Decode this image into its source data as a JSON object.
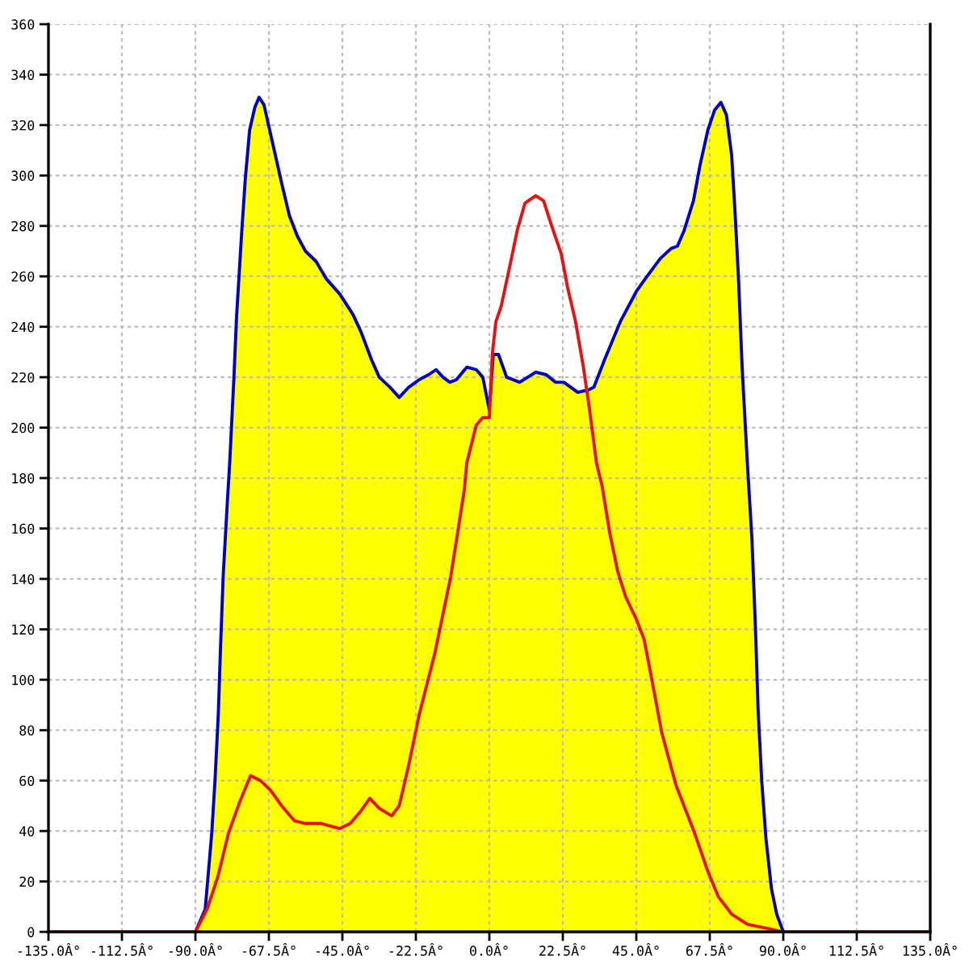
{
  "chart_data": {
    "type": "line",
    "xlim": [
      -135,
      135
    ],
    "xticks": [
      {
        "value": -135,
        "label": "-135.0Â°"
      },
      {
        "value": -112.5,
        "label": "-112.5Â°"
      },
      {
        "value": -90,
        "label": "-90.0Â°"
      },
      {
        "value": -67.5,
        "label": "-67.5Â°"
      },
      {
        "value": -45,
        "label": "-45.0Â°"
      },
      {
        "value": -22.5,
        "label": "-22.5Â°"
      },
      {
        "value": 0,
        "label": "0.0Â°"
      },
      {
        "value": 22.5,
        "label": "22.5Â°"
      },
      {
        "value": 45,
        "label": "45.0Â°"
      },
      {
        "value": 67.5,
        "label": "67.5Â°"
      },
      {
        "value": 90,
        "label": "90.0Â°"
      },
      {
        "value": 112.5,
        "label": "112.5Â°"
      },
      {
        "value": 135,
        "label": "135.0Â°"
      }
    ],
    "ylim": [
      0,
      360
    ],
    "yticks": [
      0,
      20,
      40,
      60,
      80,
      100,
      120,
      140,
      160,
      180,
      200,
      220,
      240,
      260,
      280,
      300,
      320,
      340,
      360
    ],
    "grid": true,
    "series": [
      {
        "type": "area",
        "color": "#ffff00",
        "colors": [
          "#0000cc",
          "#0000cc",
          "#0000cc",
          "#0000cc",
          "#0000cc",
          "#0000cc",
          "#0000cc",
          "#0000cc",
          "#0000cc",
          "#0000cc",
          "#0000cc",
          "#0000cc",
          "#0000cc",
          "#0000cc",
          "#0000cc",
          "#0000cc",
          "#0000cc",
          "#0000cc",
          "#0000cc",
          "#0000cc",
          "#0000cc",
          "#0000cc",
          "#0000cc",
          "#0000cc",
          "#0000cc",
          "#0000cc",
          "#0000cc",
          "#0000cc",
          "#0000cc",
          "#0000cc",
          "#0000cc",
          "#0000cc",
          "#0000cc",
          "#0000cc",
          "#0000cc",
          "#0000cc",
          "#0000cc",
          "#0000cc",
          "#0000cc",
          "#0000cc",
          "#0000cc",
          "#0000cc",
          "#0000cc",
          "#0000cc",
          "#0000cc",
          "#0000cc",
          "#0000cc",
          "#0000cc",
          "#0000cc",
          "#0000cc",
          "#0000cc",
          "#0000cc",
          "#0000cc",
          "#0000cc",
          "#0000cc",
          "#0000cc",
          "#0000cc",
          "#0000cc",
          "#0000cc",
          "#0000cc",
          "#0000cc",
          "#0000cc",
          "#0000cc",
          "#0000cc",
          "#0000cc",
          "#0000cc",
          "#0000cc",
          "#0000cc",
          "#0000cc",
          "#0000cc",
          "#0000cc",
          "#0000cc",
          "#0000cc",
          "#0000cc",
          "#0000cc",
          "#0000cc",
          "#0000cc",
          "#0000cc",
          "#0000cc",
          "#0000cc"
        ],
        "x": [
          -90,
          -87,
          -85,
          -84,
          -83,
          -82.3,
          -81.5,
          -80.2,
          -79.5,
          -78.2,
          -77.4,
          -75.8,
          -74.7,
          -73.4,
          -71.8,
          -70.5,
          -69,
          -66.9,
          -63.6,
          -61.2,
          -58.8,
          -56.3,
          -53.1,
          -49.9,
          -45.8,
          -41.8,
          -39.3,
          -36.1,
          -33.7,
          -30.4,
          -27.6,
          -24.7,
          -21.5,
          -18.6,
          -16.3,
          -14.2,
          -12.1,
          -10.1,
          -6.9,
          -4,
          -2,
          0,
          1.2,
          2.8,
          5.3,
          9.3,
          14.2,
          17.4,
          20.3,
          22.8,
          27.1,
          30.4,
          32,
          35.3,
          40.1,
          45,
          48.3,
          52.3,
          55.6,
          57.6,
          59.6,
          62.5,
          64.5,
          66.9,
          69,
          70.9,
          72.6,
          74.2,
          75.3,
          76.3,
          77.4,
          79,
          80.4,
          81.5,
          82.3,
          83.4,
          84.7,
          86.4,
          88,
          90
        ],
        "values": [
          0,
          9,
          39,
          60,
          86,
          113,
          141,
          171,
          186,
          220,
          244,
          278,
          299,
          318,
          327,
          331,
          328,
          316,
          297,
          284,
          276,
          270,
          266,
          259,
          253,
          245,
          238,
          227,
          220,
          216,
          212,
          216,
          219,
          221,
          223,
          220,
          218,
          219,
          224,
          223,
          220,
          207,
          229,
          229,
          220,
          218,
          222,
          221,
          218,
          218,
          214,
          215,
          216,
          227,
          242,
          254,
          260,
          267,
          271,
          272,
          278,
          290,
          304,
          318,
          326,
          329,
          324,
          308,
          284,
          259,
          224,
          186,
          156,
          120,
          88,
          60,
          37,
          17,
          7,
          0
        ]
      },
      {
        "color": "#e81010",
        "x": [
          -135,
          -90,
          -86.4,
          -83.1,
          -79.9,
          -76.6,
          -73.1,
          -70.1,
          -66.9,
          -63.6,
          -59.6,
          -56.3,
          -51.5,
          -45.8,
          -42.6,
          -39.3,
          -36.6,
          -33.7,
          -29.9,
          -27.6,
          -24.7,
          -21.5,
          -16.6,
          -11.8,
          -7.7,
          -6.9,
          -4,
          -2,
          0,
          0.9,
          2,
          3.6,
          6.1,
          8.5,
          10.9,
          14.2,
          16.6,
          19.1,
          22,
          23.9,
          26.4,
          28.8,
          30.7,
          32.8,
          34.5,
          36.9,
          39.3,
          41.7,
          45,
          47.4,
          49.9,
          52.8,
          57.2,
          62.9,
          66.9,
          70.1,
          74.2,
          79,
          86.4,
          90,
          135
        ],
        "values": [
          0,
          0,
          9,
          22,
          39,
          51,
          62,
          60,
          56,
          50,
          44,
          43,
          43,
          41,
          43,
          48,
          53,
          49,
          46,
          50,
          66,
          86,
          111,
          141,
          175,
          186,
          201,
          204,
          204,
          229,
          242,
          248,
          263,
          278,
          289,
          292,
          290,
          280,
          269,
          256,
          242,
          224,
          207,
          186,
          177,
          158,
          143,
          133,
          124,
          116,
          99,
          79,
          58,
          39,
          24,
          14,
          7,
          3,
          1,
          0,
          0
        ]
      }
    ]
  }
}
